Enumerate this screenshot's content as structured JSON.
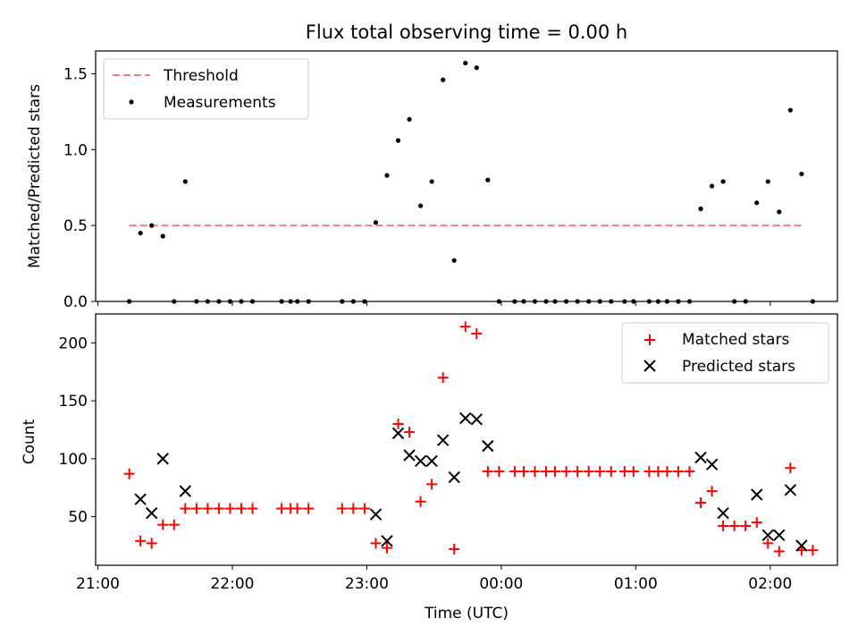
{
  "figure": {
    "title": "Flux total observing time = 0.00 h"
  },
  "chart_data": [
    {
      "type": "scatter",
      "ylabel": "Matched/Predicted stars",
      "xlim": [
        "20:59",
        "02:30"
      ],
      "ylim": [
        0,
        1.65
      ],
      "yticks": [
        0.0,
        0.5,
        1.0,
        1.5
      ],
      "ytick_labels": [
        "0.0",
        "0.5",
        "1.0",
        "1.5"
      ],
      "legend": {
        "position": "top-left",
        "entries": [
          {
            "label": "Threshold",
            "color": "#ff7a7a",
            "style": "dashed-line"
          },
          {
            "label": "Measurements",
            "color": "#000000",
            "style": "dot"
          }
        ]
      },
      "threshold": {
        "value": 0.5,
        "x_range": [
          "21:14",
          "02:14"
        ],
        "color": "#ff7a7a"
      },
      "series": [
        {
          "name": "Measurements",
          "color": "#000000",
          "points": [
            [
              "21:14",
              0.0
            ],
            [
              "21:19",
              0.45
            ],
            [
              "21:24",
              0.5
            ],
            [
              "21:29",
              0.43
            ],
            [
              "21:34",
              0.0
            ],
            [
              "21:39",
              0.79
            ],
            [
              "21:44",
              0.0
            ],
            [
              "21:49",
              0.0
            ],
            [
              "21:54",
              0.0
            ],
            [
              "21:59",
              0.0
            ],
            [
              "22:04",
              0.0
            ],
            [
              "22:09",
              0.0
            ],
            [
              "22:22",
              0.0
            ],
            [
              "22:26",
              0.0
            ],
            [
              "22:29",
              0.0
            ],
            [
              "22:34",
              0.0
            ],
            [
              "22:49",
              0.0
            ],
            [
              "22:54",
              0.0
            ],
            [
              "22:59",
              0.0
            ],
            [
              "23:04",
              0.52
            ],
            [
              "23:09",
              0.83
            ],
            [
              "23:14",
              1.06
            ],
            [
              "23:19",
              1.2
            ],
            [
              "23:24",
              0.63
            ],
            [
              "23:29",
              0.79
            ],
            [
              "23:34",
              1.46
            ],
            [
              "23:39",
              0.27
            ],
            [
              "23:44",
              1.57
            ],
            [
              "23:49",
              1.54
            ],
            [
              "23:54",
              0.8
            ],
            [
              "23:59",
              0.0
            ],
            [
              "00:06",
              0.0
            ],
            [
              "00:10",
              0.0
            ],
            [
              "00:15",
              0.0
            ],
            [
              "00:20",
              0.0
            ],
            [
              "00:24",
              0.0
            ],
            [
              "00:29",
              0.0
            ],
            [
              "00:34",
              0.0
            ],
            [
              "00:39",
              0.0
            ],
            [
              "00:44",
              0.0
            ],
            [
              "00:49",
              0.0
            ],
            [
              "00:55",
              0.0
            ],
            [
              "00:59",
              0.0
            ],
            [
              "01:06",
              0.0
            ],
            [
              "01:10",
              0.0
            ],
            [
              "01:14",
              0.0
            ],
            [
              "01:19",
              0.0
            ],
            [
              "01:24",
              0.0
            ],
            [
              "01:29",
              0.61
            ],
            [
              "01:34",
              0.76
            ],
            [
              "01:39",
              0.79
            ],
            [
              "01:44",
              0.0
            ],
            [
              "01:49",
              0.0
            ],
            [
              "01:54",
              0.65
            ],
            [
              "01:59",
              0.79
            ],
            [
              "02:04",
              0.59
            ],
            [
              "02:09",
              1.26
            ],
            [
              "02:14",
              0.84
            ],
            [
              "02:19",
              0.0
            ]
          ]
        }
      ]
    },
    {
      "type": "scatter",
      "xlabel": "Time (UTC)",
      "ylabel": "Count",
      "xlim": [
        "20:59",
        "02:30"
      ],
      "ylim": [
        8,
        225
      ],
      "yticks": [
        50,
        100,
        150,
        200
      ],
      "ytick_labels": [
        "50",
        "100",
        "150",
        "200"
      ],
      "xticks": [
        "21:00",
        "22:00",
        "23:00",
        "00:00",
        "01:00",
        "02:00"
      ],
      "legend": {
        "position": "top-right",
        "entries": [
          {
            "label": "Matched stars",
            "color": "#ff0000",
            "marker": "plus"
          },
          {
            "label": "Predicted stars",
            "color": "#000000",
            "marker": "x"
          }
        ]
      },
      "series": [
        {
          "name": "Matched stars",
          "color": "#ff0000",
          "marker": "plus",
          "points": [
            [
              "21:14",
              87
            ],
            [
              "21:19",
              29
            ],
            [
              "21:24",
              27
            ],
            [
              "21:29",
              43
            ],
            [
              "21:34",
              43
            ],
            [
              "21:39",
              57
            ],
            [
              "21:44",
              57
            ],
            [
              "21:49",
              57
            ],
            [
              "21:54",
              57
            ],
            [
              "21:59",
              57
            ],
            [
              "22:04",
              57
            ],
            [
              "22:09",
              57
            ],
            [
              "22:22",
              57
            ],
            [
              "22:26",
              57
            ],
            [
              "22:29",
              57
            ],
            [
              "22:34",
              57
            ],
            [
              "22:49",
              57
            ],
            [
              "22:54",
              57
            ],
            [
              "22:59",
              57
            ],
            [
              "23:04",
              27
            ],
            [
              "23:09",
              23
            ],
            [
              "23:14",
              130
            ],
            [
              "23:19",
              123
            ],
            [
              "23:24",
              63
            ],
            [
              "23:29",
              78
            ],
            [
              "23:34",
              170
            ],
            [
              "23:39",
              22
            ],
            [
              "23:44",
              214
            ],
            [
              "23:49",
              208
            ],
            [
              "23:54",
              89
            ],
            [
              "23:59",
              89
            ],
            [
              "00:06",
              89
            ],
            [
              "00:10",
              89
            ],
            [
              "00:15",
              89
            ],
            [
              "00:20",
              89
            ],
            [
              "00:24",
              89
            ],
            [
              "00:29",
              89
            ],
            [
              "00:34",
              89
            ],
            [
              "00:39",
              89
            ],
            [
              "00:44",
              89
            ],
            [
              "00:49",
              89
            ],
            [
              "00:55",
              89
            ],
            [
              "00:59",
              89
            ],
            [
              "01:06",
              89
            ],
            [
              "01:10",
              89
            ],
            [
              "01:14",
              89
            ],
            [
              "01:19",
              89
            ],
            [
              "01:24",
              89
            ],
            [
              "01:29",
              62
            ],
            [
              "01:34",
              72
            ],
            [
              "01:39",
              42
            ],
            [
              "01:44",
              42
            ],
            [
              "01:49",
              42
            ],
            [
              "01:54",
              45
            ],
            [
              "01:59",
              27
            ],
            [
              "02:04",
              20
            ],
            [
              "02:09",
              92
            ],
            [
              "02:14",
              21
            ],
            [
              "02:19",
              21
            ]
          ]
        },
        {
          "name": "Predicted stars",
          "color": "#000000",
          "marker": "x",
          "points": [
            [
              "21:19",
              65
            ],
            [
              "21:24",
              53
            ],
            [
              "21:29",
              100
            ],
            [
              "21:39",
              72
            ],
            [
              "23:04",
              52
            ],
            [
              "23:09",
              29
            ],
            [
              "23:14",
              122
            ],
            [
              "23:19",
              103
            ],
            [
              "23:24",
              98
            ],
            [
              "23:29",
              98
            ],
            [
              "23:34",
              116
            ],
            [
              "23:39",
              84
            ],
            [
              "23:44",
              135
            ],
            [
              "23:49",
              134
            ],
            [
              "23:54",
              111
            ],
            [
              "01:29",
              101
            ],
            [
              "01:34",
              95
            ],
            [
              "01:39",
              53
            ],
            [
              "01:54",
              69
            ],
            [
              "01:59",
              34
            ],
            [
              "02:04",
              34
            ],
            [
              "02:09",
              73
            ],
            [
              "02:14",
              25
            ]
          ]
        }
      ]
    }
  ]
}
